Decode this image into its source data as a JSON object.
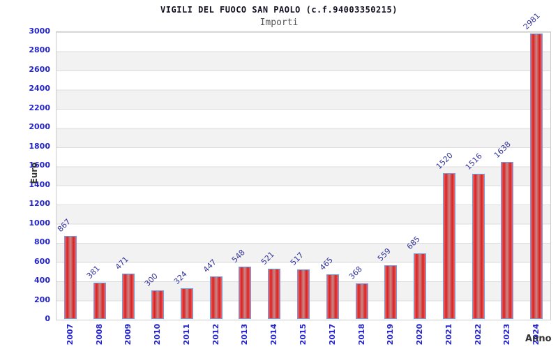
{
  "chart_data": {
    "type": "bar",
    "title": "VIGILI DEL FUOCO SAN PAOLO (c.f.94003350215)",
    "subtitle": "Importi",
    "xlabel": "Anno",
    "ylabel": "Euro",
    "categories": [
      "2007",
      "2008",
      "2009",
      "2010",
      "2011",
      "2012",
      "2013",
      "2014",
      "2015",
      "2017",
      "2018",
      "2019",
      "2020",
      "2021",
      "2022",
      "2023",
      "2024"
    ],
    "values": [
      867,
      381,
      471,
      300,
      324,
      447,
      548,
      521,
      517,
      465,
      368,
      559,
      685,
      1520,
      1516,
      1638,
      2981
    ],
    "ylim": [
      0,
      3000
    ],
    "ytick_step": 200,
    "legend": "none",
    "grid": "horizontal bands every 200, alternating white and light gray",
    "bar_value_labels_rotation_deg": -45,
    "xtick_rotation_deg": -90,
    "colors": {
      "bar_gradient": [
        "#f26b6b",
        "#d92121",
        "#c98a8a",
        "#d92121",
        "#f26b6b"
      ],
      "bar_border": "#64a2ef",
      "tick_label": "#2424cc",
      "value_label": "#333399",
      "title": "#111122",
      "subtitle": "#555555",
      "axis_title": "#333333",
      "band": "#f2f2f2",
      "gridline": "#dcdcdc",
      "plot_border": "#cccccc",
      "background": "#ffffff"
    }
  }
}
